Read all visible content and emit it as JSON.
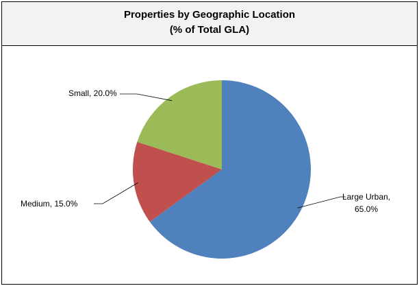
{
  "chart_data": {
    "type": "pie",
    "title": "Properties by Geographic Location",
    "subtitle": "(% of Total GLA)",
    "categories": [
      "Large Urban",
      "Medium",
      "Small"
    ],
    "values": [
      65,
      15,
      20
    ],
    "value_labels": [
      "Large Urban, 65.0%",
      "Medium, 15.0%",
      "Small, 20.0%"
    ],
    "colors": [
      "#4f81bd",
      "#c0504d",
      "#9bbb59"
    ]
  }
}
